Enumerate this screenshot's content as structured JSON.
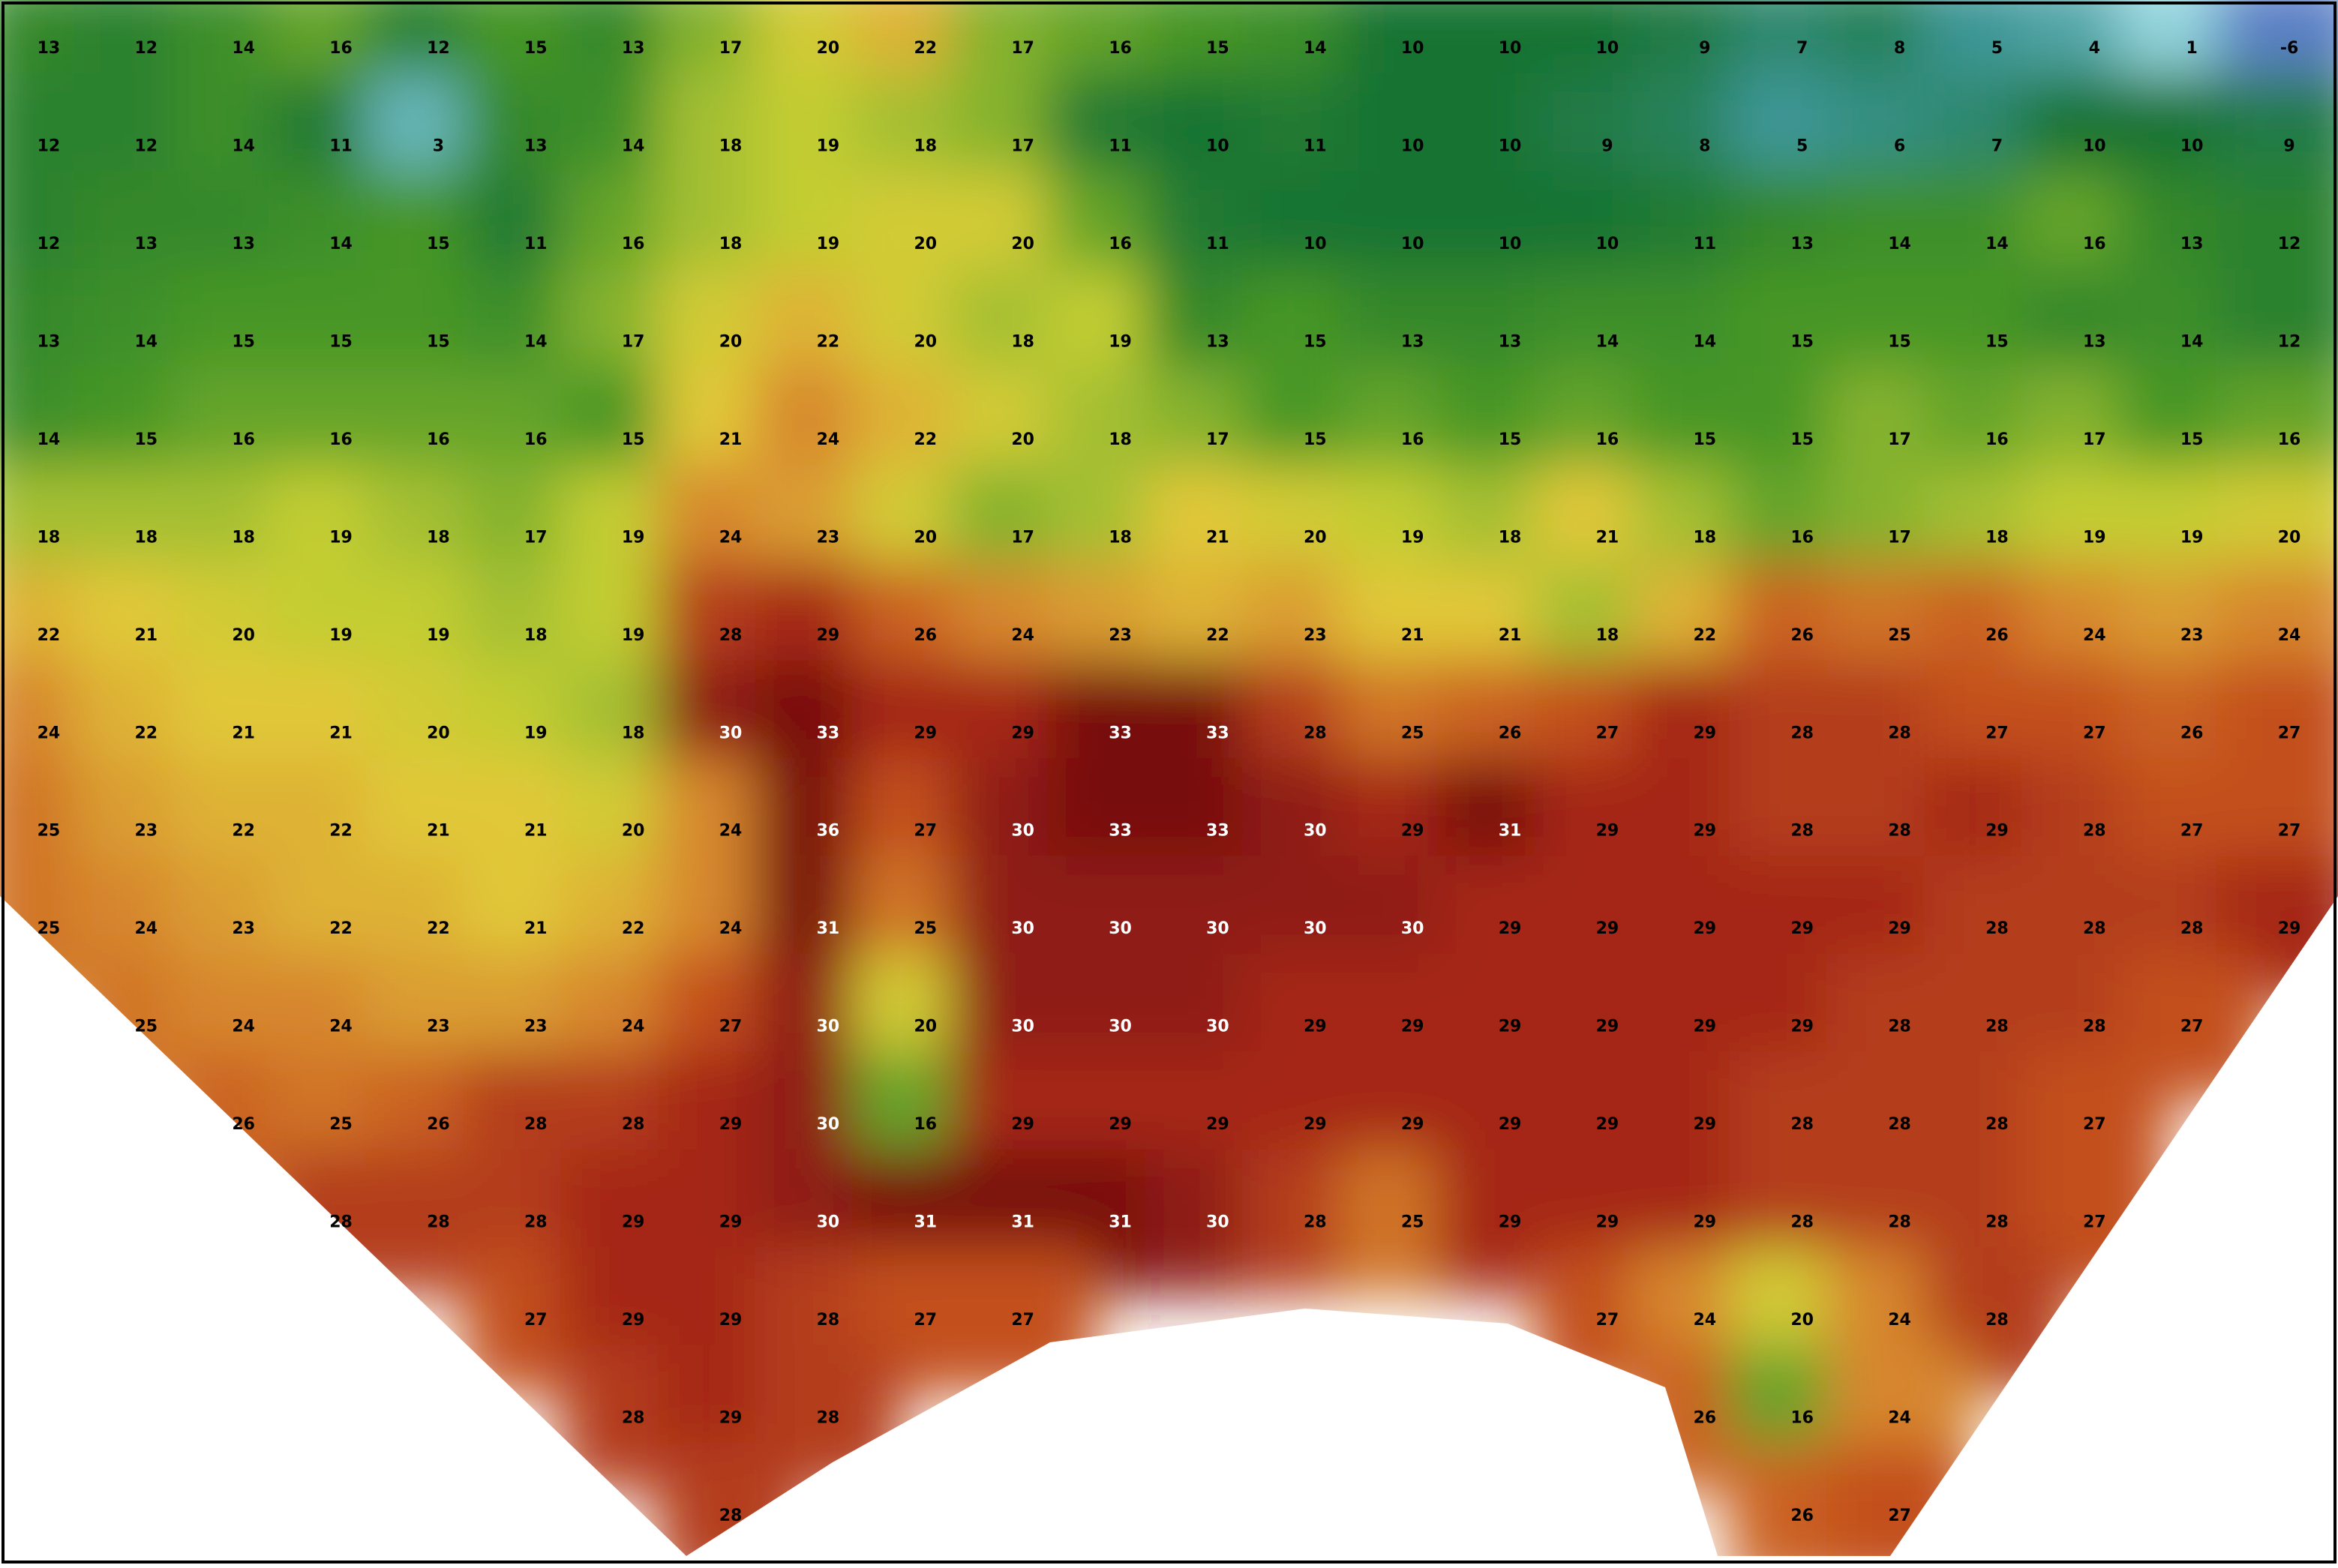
{
  "grid": {
    "rows": [
      [
        13,
        12,
        14,
        16,
        12,
        15,
        13,
        17,
        20,
        22,
        17,
        16,
        15,
        14,
        10,
        10,
        10,
        9,
        7,
        8,
        5,
        4,
        1,
        -6
      ],
      [
        12,
        12,
        14,
        11,
        3,
        13,
        14,
        18,
        19,
        18,
        17,
        11,
        10,
        11,
        10,
        10,
        9,
        8,
        5,
        6,
        7,
        10,
        10,
        9
      ],
      [
        12,
        13,
        13,
        14,
        15,
        11,
        16,
        18,
        19,
        20,
        20,
        16,
        11,
        10,
        10,
        10,
        10,
        11,
        13,
        14,
        14,
        16,
        13,
        12
      ],
      [
        13,
        14,
        15,
        15,
        15,
        14,
        17,
        20,
        22,
        20,
        18,
        19,
        13,
        15,
        13,
        13,
        14,
        14,
        15,
        15,
        15,
        13,
        14,
        12
      ],
      [
        14,
        15,
        16,
        16,
        16,
        16,
        15,
        21,
        24,
        22,
        20,
        18,
        17,
        15,
        16,
        15,
        16,
        15,
        15,
        17,
        16,
        17,
        15,
        16
      ],
      [
        18,
        18,
        18,
        19,
        18,
        17,
        19,
        24,
        23,
        20,
        17,
        18,
        21,
        20,
        19,
        18,
        21,
        18,
        16,
        17,
        18,
        19,
        19,
        20
      ],
      [
        22,
        21,
        20,
        19,
        19,
        18,
        19,
        28,
        29,
        26,
        24,
        23,
        22,
        23,
        21,
        21,
        18,
        22,
        26,
        25,
        26,
        24,
        23,
        24
      ],
      [
        24,
        22,
        21,
        21,
        20,
        19,
        18,
        30,
        33,
        29,
        29,
        33,
        33,
        28,
        25,
        26,
        27,
        29,
        28,
        28,
        27,
        27,
        26,
        27
      ],
      [
        25,
        23,
        22,
        22,
        21,
        21,
        20,
        24,
        36,
        27,
        30,
        33,
        33,
        30,
        29,
        31,
        29,
        29,
        28,
        28,
        29,
        28,
        27,
        27
      ],
      [
        25,
        24,
        23,
        22,
        22,
        21,
        22,
        24,
        31,
        25,
        30,
        30,
        30,
        30,
        30,
        29,
        29,
        29,
        29,
        29,
        28,
        28,
        28,
        29
      ],
      [
        null,
        25,
        24,
        24,
        23,
        23,
        24,
        27,
        30,
        20,
        30,
        30,
        30,
        29,
        29,
        29,
        29,
        29,
        29,
        28,
        28,
        28,
        27,
        null
      ],
      [
        null,
        null,
        26,
        25,
        26,
        28,
        28,
        29,
        30,
        16,
        29,
        29,
        29,
        29,
        29,
        29,
        29,
        29,
        28,
        28,
        28,
        27,
        null,
        null
      ],
      [
        null,
        null,
        null,
        28,
        28,
        28,
        29,
        29,
        30,
        31,
        31,
        31,
        30,
        28,
        25,
        29,
        29,
        29,
        28,
        28,
        28,
        27,
        null,
        null
      ],
      [
        null,
        null,
        null,
        null,
        null,
        27,
        29,
        29,
        28,
        27,
        27,
        null,
        null,
        null,
        null,
        null,
        27,
        24,
        20,
        24,
        28,
        null,
        null,
        null
      ],
      [
        null,
        null,
        null,
        null,
        null,
        null,
        28,
        29,
        28,
        null,
        null,
        null,
        null,
        null,
        null,
        null,
        null,
        26,
        16,
        24,
        null,
        null,
        null,
        null
      ],
      [
        null,
        null,
        null,
        null,
        null,
        null,
        null,
        28,
        null,
        null,
        null,
        null,
        null,
        null,
        null,
        null,
        null,
        null,
        26,
        27,
        null,
        null,
        null,
        null
      ]
    ]
  }
}
